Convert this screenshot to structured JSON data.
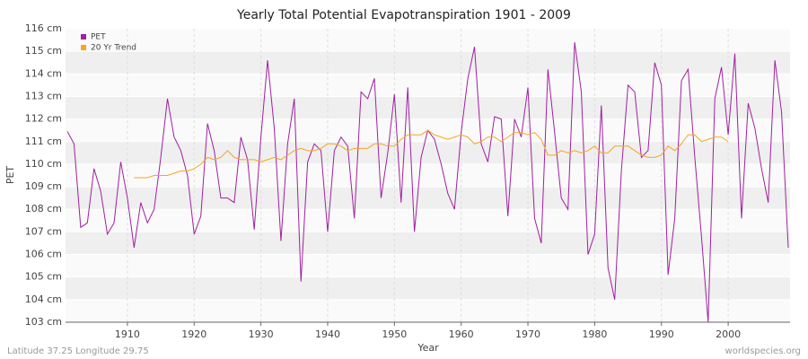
{
  "chart_data": {
    "type": "line",
    "title": "Yearly Total Potential Evapotranspiration 1901 - 2009",
    "x_label": "Year",
    "y_label": "PET",
    "x": [
      1901,
      1902,
      1903,
      1904,
      1905,
      1906,
      1907,
      1908,
      1909,
      1910,
      1911,
      1912,
      1913,
      1914,
      1915,
      1916,
      1917,
      1918,
      1919,
      1920,
      1921,
      1922,
      1923,
      1924,
      1925,
      1926,
      1927,
      1928,
      1929,
      1930,
      1931,
      1932,
      1933,
      1934,
      1935,
      1936,
      1937,
      1938,
      1939,
      1940,
      1941,
      1942,
      1943,
      1944,
      1945,
      1946,
      1947,
      1948,
      1949,
      1950,
      1951,
      1952,
      1953,
      1954,
      1955,
      1956,
      1957,
      1958,
      1959,
      1960,
      1961,
      1962,
      1963,
      1964,
      1965,
      1966,
      1967,
      1968,
      1969,
      1970,
      1971,
      1972,
      1973,
      1974,
      1975,
      1976,
      1977,
      1978,
      1979,
      1980,
      1981,
      1982,
      1983,
      1984,
      1985,
      1986,
      1987,
      1988,
      1989,
      1990,
      1991,
      1992,
      1993,
      1994,
      1995,
      1996,
      1997,
      1998,
      1999,
      2000,
      2001,
      2002,
      2003,
      2004,
      2005,
      2006,
      2007,
      2008,
      2009
    ],
    "series": [
      {
        "name": "PET",
        "color": "#a020a0",
        "values": [
          111.45,
          110.9,
          107.2,
          107.4,
          109.8,
          108.8,
          106.9,
          107.4,
          110.1,
          108.5,
          106.3,
          108.3,
          107.4,
          108.0,
          110.3,
          112.9,
          111.2,
          110.6,
          109.5,
          106.9,
          107.7,
          111.8,
          110.6,
          108.5,
          108.5,
          108.3,
          111.2,
          110.2,
          107.1,
          111.2,
          114.6,
          111.6,
          106.6,
          110.9,
          112.9,
          104.8,
          110.1,
          110.9,
          110.6,
          107.0,
          110.6,
          111.2,
          110.8,
          107.6,
          113.2,
          112.9,
          113.8,
          108.5,
          110.5,
          113.1,
          108.3,
          113.4,
          107.0,
          110.3,
          111.5,
          111.1,
          110.0,
          108.7,
          108.0,
          111.4,
          113.8,
          115.2,
          110.9,
          110.1,
          112.1,
          112.0,
          107.7,
          112.0,
          111.2,
          113.4,
          107.6,
          106.5,
          114.2,
          111.4,
          108.5,
          108.0,
          115.4,
          113.2,
          106.0,
          106.9,
          112.6,
          105.4,
          104.0,
          109.7,
          113.5,
          113.2,
          110.3,
          110.6,
          114.5,
          113.5,
          105.1,
          107.6,
          113.7,
          114.2,
          110.3,
          106.8,
          103.0,
          112.9,
          114.3,
          111.3,
          114.9,
          107.6,
          112.7,
          111.6,
          109.8,
          108.3,
          114.6,
          112.3,
          106.3
        ]
      },
      {
        "name": "20 Yr Trend",
        "color": "#f5a623",
        "values": [
          null,
          null,
          null,
          null,
          null,
          null,
          null,
          null,
          null,
          null,
          109.4,
          109.4,
          109.4,
          109.5,
          109.5,
          109.5,
          109.6,
          109.7,
          109.7,
          109.8,
          110.0,
          110.3,
          110.2,
          110.3,
          110.6,
          110.3,
          110.2,
          110.2,
          110.2,
          110.1,
          110.2,
          110.3,
          110.2,
          110.4,
          110.6,
          110.7,
          110.6,
          110.6,
          110.7,
          110.9,
          110.9,
          110.8,
          110.6,
          110.7,
          110.7,
          110.7,
          110.9,
          110.9,
          110.8,
          110.8,
          111.1,
          111.3,
          111.3,
          111.3,
          111.5,
          111.3,
          111.2,
          111.1,
          111.2,
          111.3,
          111.2,
          110.9,
          111.0,
          111.2,
          111.2,
          111.0,
          111.2,
          111.4,
          111.4,
          111.3,
          111.4,
          111.1,
          110.4,
          110.4,
          110.6,
          110.5,
          110.6,
          110.5,
          110.6,
          110.8,
          110.5,
          110.5,
          110.8,
          110.8,
          110.8,
          110.6,
          110.4,
          110.3,
          110.3,
          110.4,
          110.8,
          110.6,
          110.9,
          111.3,
          111.3,
          111.0,
          111.1,
          111.2,
          111.2,
          111.0,
          null,
          null,
          null,
          null,
          null,
          null,
          null,
          null,
          null
        ]
      }
    ],
    "xlim": [
      1901,
      2009
    ],
    "xticks": [
      1910,
      1920,
      1930,
      1940,
      1950,
      1960,
      1970,
      1980,
      1990,
      2000
    ],
    "ylim": [
      103,
      116
    ],
    "yticks": [
      {
        "value": 103,
        "label": "103 cm"
      },
      {
        "value": 104,
        "label": "104 cm"
      },
      {
        "value": 105,
        "label": "105 cm"
      },
      {
        "value": 106,
        "label": "106 cm"
      },
      {
        "value": 107,
        "label": "107 cm"
      },
      {
        "value": 108,
        "label": "108 cm"
      },
      {
        "value": 109,
        "label": "109 cm"
      },
      {
        "value": 110,
        "label": "110 cm"
      },
      {
        "value": 111,
        "label": "111 cm"
      },
      {
        "value": 112,
        "label": "112 cm"
      },
      {
        "value": 113,
        "label": "113 cm"
      },
      {
        "value": 114,
        "label": "114 cm"
      },
      {
        "value": 115,
        "label": "115 cm"
      },
      {
        "value": 116,
        "label": "116 cm"
      }
    ],
    "grid": true,
    "legend": "upper-left"
  },
  "footer_left": "Latitude 37.25 Longitude 29.75",
  "footer_right": "worldspecies.org"
}
